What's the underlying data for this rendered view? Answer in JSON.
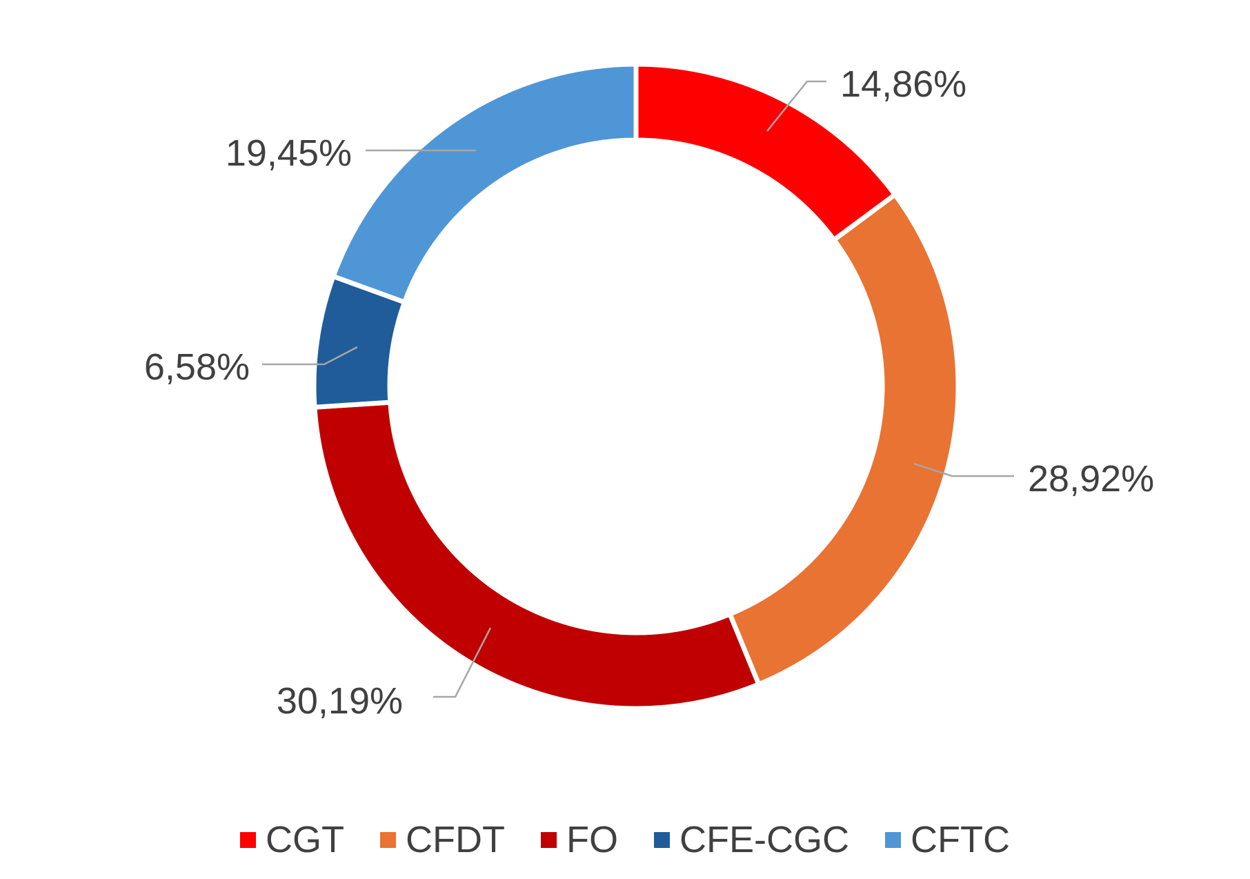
{
  "chart_data": {
    "type": "pie",
    "variant": "doughnut",
    "start_angle_deg": 0,
    "direction": "clockwise",
    "legend_position": "bottom",
    "series": [
      {
        "name": "CGT",
        "value": 14.86,
        "label": "14,86%",
        "color": "#ff0000"
      },
      {
        "name": "CFDT",
        "value": 28.92,
        "label": "28,92%",
        "color": "#e97332"
      },
      {
        "name": "FO",
        "value": 30.19,
        "label": "30,19%",
        "color": "#c00000"
      },
      {
        "name": "CFE-CGC",
        "value": 6.58,
        "label": "6,58%",
        "color": "#1f5c99"
      },
      {
        "name": "CFTC",
        "value": 19.45,
        "label": "19,45%",
        "color": "#4f96d6"
      }
    ]
  }
}
